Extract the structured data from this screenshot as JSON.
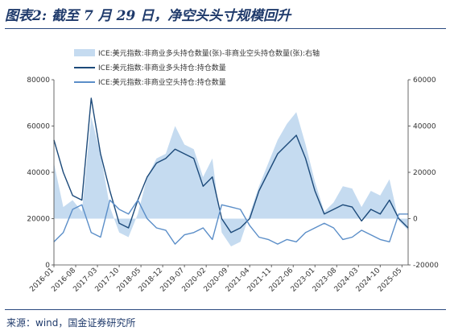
{
  "figure": {
    "title": "图表2: 截至 7 月 29 日，净空头头寸规模回升",
    "source": "来源：wind，国金证券研究所"
  },
  "colors": {
    "title": "#1f3a6b",
    "area": "#c5dbf0",
    "long": "#1c4a7a",
    "short": "#5b8ec8",
    "axis": "#444444"
  },
  "chart_data": {
    "type": "line",
    "title": "",
    "xlabel": "",
    "ylabel": "",
    "y2label": "",
    "ylim": [
      0,
      80000
    ],
    "y2lim": [
      -20000,
      60000
    ],
    "yticks": [
      "0",
      "20000",
      "40000",
      "60000",
      "80000"
    ],
    "y2ticks": [
      "-20000",
      "0",
      "20000",
      "40000",
      "60000"
    ],
    "xticks": [
      "2016-01",
      "2016-08",
      "2017-03",
      "2017-10",
      "2018-05",
      "2018-12",
      "2019-07",
      "2020-02",
      "2020-09",
      "2021-04",
      "2021-11",
      "2022-06",
      "2023-01",
      "2023-08",
      "2024-03",
      "2024-10",
      "2025-05"
    ],
    "x": [
      "2016-01",
      "2016-04",
      "2016-07",
      "2016-10",
      "2017-01",
      "2017-04",
      "2017-07",
      "2017-10",
      "2018-01",
      "2018-04",
      "2018-07",
      "2018-10",
      "2019-01",
      "2019-04",
      "2019-07",
      "2019-10",
      "2020-01",
      "2020-04",
      "2020-07",
      "2020-10",
      "2021-01",
      "2021-04",
      "2021-07",
      "2021-10",
      "2022-01",
      "2022-04",
      "2022-07",
      "2022-10",
      "2023-01",
      "2023-04",
      "2023-07",
      "2023-10",
      "2024-01",
      "2024-04",
      "2024-07",
      "2024-10",
      "2025-01",
      "2025-04",
      "2025-07"
    ],
    "legend_position": "top-left",
    "series": [
      {
        "name": "ICE:美元指数:非商业多头持仓数量(张)-非商业空头持仓数量(张):右轴",
        "type": "area",
        "axis": "right",
        "values": [
          24000,
          5000,
          8000,
          3000,
          44000,
          28000,
          5000,
          -6000,
          -8000,
          2000,
          18000,
          26000,
          28000,
          40000,
          32000,
          30000,
          18000,
          26000,
          -6000,
          -12000,
          -10000,
          2000,
          14000,
          24000,
          34000,
          41000,
          46000,
          32000,
          16000,
          3000,
          7000,
          14000,
          13000,
          5000,
          12000,
          10000,
          17000,
          -1000,
          -5000
        ]
      },
      {
        "name": "ICE:美元指数:非商业多头持仓:持仓数量",
        "type": "line",
        "axis": "left",
        "values": [
          54000,
          40000,
          30000,
          28000,
          72000,
          48000,
          32000,
          18000,
          16000,
          28000,
          38000,
          44000,
          46000,
          50000,
          48000,
          46000,
          34000,
          38000,
          20000,
          14000,
          16000,
          20000,
          32000,
          40000,
          48000,
          52000,
          56000,
          46000,
          32000,
          22000,
          24000,
          26000,
          25000,
          19000,
          24000,
          22000,
          28000,
          20000,
          16000
        ]
      },
      {
        "name": "ICE:美元指数:非商业空头持仓:持仓数量",
        "type": "line",
        "axis": "left",
        "values": [
          10000,
          14000,
          24000,
          26000,
          14000,
          12000,
          28000,
          24000,
          22000,
          28000,
          20000,
          16000,
          15000,
          9000,
          13000,
          14000,
          16000,
          11000,
          26000,
          25000,
          24000,
          17000,
          12000,
          11000,
          9000,
          11000,
          10000,
          14000,
          16000,
          18000,
          16000,
          11000,
          12000,
          15000,
          13000,
          11000,
          10000,
          22000,
          22000
        ]
      }
    ]
  }
}
